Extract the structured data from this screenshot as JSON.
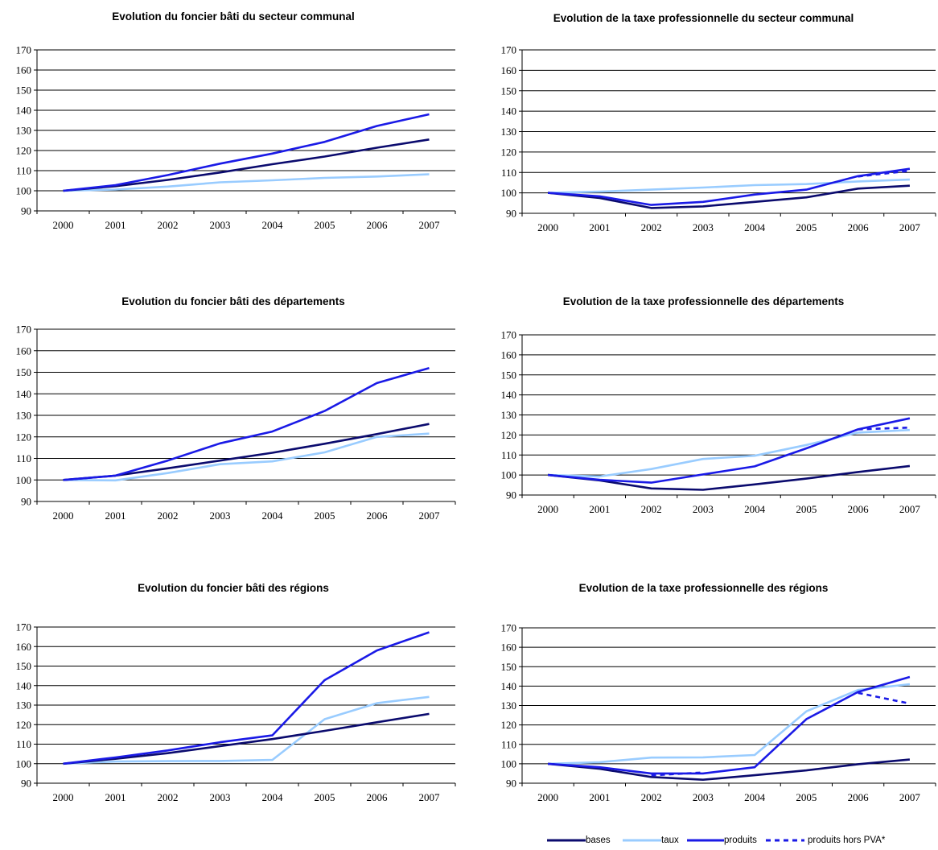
{
  "colors": {
    "bases": "#0b0b6e",
    "taux": "#99ccff",
    "produits": "#1a1ae6",
    "produits_hors_pva": "#1a1ae6"
  },
  "legend": {
    "bases": "bases",
    "taux": "taux",
    "produits": "produits",
    "produits_hors_pva": "produits hors PVA*"
  },
  "chart_data": [
    {
      "type": "line",
      "title": "Evolution du foncier bâti du secteur communal",
      "x": [
        "2000",
        "2001",
        "2002",
        "2003",
        "2004",
        "2005",
        "2006",
        "2007"
      ],
      "ylim": [
        90,
        170
      ],
      "yticks": [
        90,
        100,
        110,
        120,
        130,
        140,
        150,
        160,
        170
      ],
      "series": [
        {
          "key": "bases",
          "name": "bases",
          "values": [
            100,
            102.3,
            105.4,
            109.1,
            113.2,
            117.0,
            121.4,
            125.5
          ]
        },
        {
          "key": "taux",
          "name": "taux",
          "values": [
            100,
            100.6,
            102.1,
            104.2,
            105.2,
            106.4,
            107.1,
            108.2
          ]
        },
        {
          "key": "produits",
          "name": "produits",
          "values": [
            100,
            102.8,
            107.8,
            113.5,
            118.5,
            124.3,
            132.2,
            138.0
          ]
        }
      ]
    },
    {
      "type": "line",
      "title": "Evolution de la taxe professionnelle du secteur communal",
      "x": [
        "2000",
        "2001",
        "2002",
        "2003",
        "2004",
        "2005",
        "2006",
        "2007"
      ],
      "ylim": [
        90,
        170
      ],
      "yticks": [
        90,
        100,
        110,
        120,
        130,
        140,
        150,
        160,
        170
      ],
      "series": [
        {
          "key": "bases",
          "name": "bases",
          "values": [
            100,
            97.5,
            92.6,
            93.4,
            95.6,
            97.8,
            102.1,
            103.5
          ]
        },
        {
          "key": "taux",
          "name": "taux",
          "values": [
            100,
            100.6,
            101.6,
            102.6,
            103.8,
            104.3,
            105.6,
            106.5
          ]
        },
        {
          "key": "produits",
          "name": "produits",
          "values": [
            100,
            98.3,
            94.1,
            95.6,
            99.2,
            101.6,
            108.2,
            111.8
          ]
        },
        {
          "key": "produits_hors_pva",
          "name": "produits hors PVA*",
          "dashed": true,
          "values": [
            null,
            null,
            null,
            null,
            null,
            null,
            108.0,
            110.8
          ]
        }
      ]
    },
    {
      "type": "line",
      "title": "Evolution du foncier bâti des départements",
      "x": [
        "2000",
        "2001",
        "2002",
        "2003",
        "2004",
        "2005",
        "2006",
        "2007"
      ],
      "ylim": [
        90,
        170
      ],
      "yticks": [
        90,
        100,
        110,
        120,
        130,
        140,
        150,
        160,
        170
      ],
      "series": [
        {
          "key": "bases",
          "name": "bases",
          "values": [
            100,
            102.0,
            105.4,
            109.0,
            112.6,
            116.8,
            121.3,
            126.0
          ]
        },
        {
          "key": "taux",
          "name": "taux",
          "values": [
            100,
            99.8,
            103.2,
            107.3,
            108.6,
            112.8,
            120.0,
            121.5
          ]
        },
        {
          "key": "produits",
          "name": "produits",
          "values": [
            100,
            102.0,
            109.0,
            117.0,
            122.5,
            132.0,
            145.0,
            152.0
          ]
        }
      ]
    },
    {
      "type": "line",
      "title": "Evolution de la taxe professionnelle des départements",
      "x": [
        "2000",
        "2001",
        "2002",
        "2003",
        "2004",
        "2005",
        "2006",
        "2007"
      ],
      "ylim": [
        90,
        170
      ],
      "yticks": [
        90,
        100,
        110,
        120,
        130,
        140,
        150,
        160,
        170
      ],
      "series": [
        {
          "key": "bases",
          "name": "bases",
          "values": [
            100,
            97.3,
            93.3,
            92.6,
            95.3,
            98.2,
            101.5,
            104.5
          ]
        },
        {
          "key": "taux",
          "name": "taux",
          "values": [
            100,
            99.3,
            103.0,
            108.0,
            109.6,
            115.0,
            121.2,
            122.5
          ]
        },
        {
          "key": "produits",
          "name": "produits",
          "values": [
            100,
            97.6,
            96.2,
            100.3,
            104.3,
            113.3,
            122.8,
            128.3
          ]
        },
        {
          "key": "produits_hors_pva",
          "name": "produits hors PVA*",
          "dashed": true,
          "values": [
            null,
            null,
            null,
            null,
            null,
            null,
            122.8,
            123.7
          ]
        }
      ]
    },
    {
      "type": "line",
      "title": "Evolution du foncier bâti des régions",
      "x": [
        "2000",
        "2001",
        "2002",
        "2003",
        "2004",
        "2005",
        "2006",
        "2007"
      ],
      "ylim": [
        90,
        170
      ],
      "yticks": [
        90,
        100,
        110,
        120,
        130,
        140,
        150,
        160,
        170
      ],
      "series": [
        {
          "key": "bases",
          "name": "bases",
          "values": [
            100,
            102.5,
            105.4,
            109.0,
            112.6,
            116.8,
            121.2,
            125.5
          ]
        },
        {
          "key": "taux",
          "name": "taux",
          "values": [
            100,
            101.1,
            101.3,
            101.4,
            101.9,
            122.8,
            131.0,
            134.2
          ]
        },
        {
          "key": "produits",
          "name": "produits",
          "values": [
            100,
            103.2,
            106.8,
            111.0,
            114.5,
            142.8,
            158.0,
            167.3
          ]
        }
      ]
    },
    {
      "type": "line",
      "title": "Evolution de la taxe professionnelle des régions",
      "x": [
        "2000",
        "2001",
        "2002",
        "2003",
        "2004",
        "2005",
        "2006",
        "2007"
      ],
      "ylim": [
        90,
        170
      ],
      "yticks": [
        90,
        100,
        110,
        120,
        130,
        140,
        150,
        160,
        170
      ],
      "series": [
        {
          "key": "bases",
          "name": "bases",
          "values": [
            100,
            97.4,
            93.2,
            91.8,
            94.1,
            96.6,
            99.8,
            102.2
          ]
        },
        {
          "key": "taux",
          "name": "taux",
          "values": [
            100,
            100.8,
            103.2,
            103.3,
            104.5,
            127.0,
            138.0,
            141.0
          ]
        },
        {
          "key": "produits",
          "name": "produits",
          "values": [
            100,
            98.2,
            95.0,
            95.0,
            98.2,
            123.0,
            137.0,
            144.7
          ]
        },
        {
          "key": "produits_hors_pva",
          "name": "produits hors PVA*",
          "dashed": true,
          "values": [
            null,
            null,
            94.0,
            95.5,
            null,
            null,
            136.5,
            131.0
          ]
        }
      ]
    }
  ]
}
